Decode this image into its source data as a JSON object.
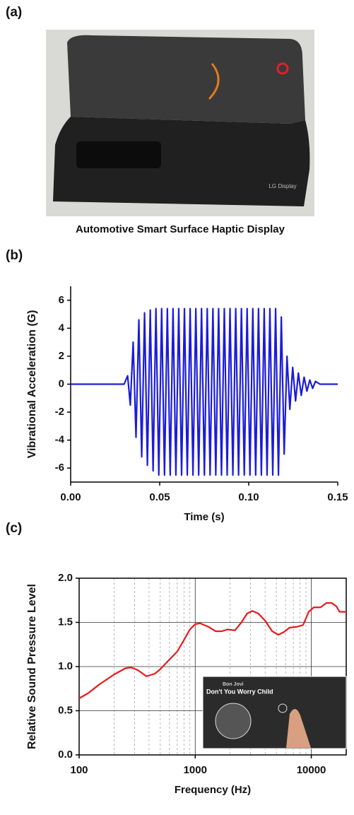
{
  "panel_labels": [
    "(a)",
    "(b)",
    "(c)"
  ],
  "photo_caption": "Automotive Smart Surface Haptic Display",
  "photo_logo": "LG Display",
  "inset": {
    "artist": "Bon Jovi",
    "song": "Don't You Worry Child"
  },
  "chart_data": [
    {
      "type": "line",
      "x_label": "Time (s)",
      "y_label": "Vibrational Acceleration (G)",
      "color": "#1c1cd8",
      "xlim": [
        0,
        0.15
      ],
      "xticks": [
        {
          "value": 0,
          "label": "0.00"
        },
        0.05,
        {
          "value": 0.1,
          "label": "0.10"
        },
        0.15
      ],
      "ylim": [
        -7,
        7
      ],
      "yticks": [
        -6,
        -4,
        -2,
        0,
        2,
        4,
        6
      ],
      "grid": false,
      "x": [
        0,
        0.03,
        0.032,
        0.0335,
        0.0351,
        0.0367,
        0.0383,
        0.0399,
        0.0415,
        0.0431,
        0.0447,
        0.0463,
        0.0479,
        0.0495,
        0.0511,
        0.0527,
        0.0543,
        0.0559,
        0.0575,
        0.0591,
        0.0607,
        0.0623,
        0.0639,
        0.0655,
        0.0671,
        0.0687,
        0.0703,
        0.0719,
        0.0735,
        0.0751,
        0.0767,
        0.0783,
        0.0799,
        0.0815,
        0.0831,
        0.0847,
        0.0863,
        0.0879,
        0.0895,
        0.0911,
        0.0927,
        0.0943,
        0.0959,
        0.0975,
        0.0991,
        0.1007,
        0.1023,
        0.1039,
        0.1055,
        0.1071,
        0.1087,
        0.1103,
        0.1119,
        0.1135,
        0.1151,
        0.1167,
        0.1183,
        0.1199,
        0.1215,
        0.1231,
        0.1247,
        0.1263,
        0.1279,
        0.1295,
        0.1311,
        0.1327,
        0.1343,
        0.1359,
        0.1375,
        0.14,
        0.15
      ],
      "values": [
        0,
        0,
        0.6,
        -1.5,
        3.0,
        -3.8,
        4.6,
        -5.2,
        5.1,
        -5.8,
        5.3,
        -6.2,
        5.4,
        -6.5,
        5.4,
        -6.5,
        5.4,
        -6.5,
        5.4,
        -6.5,
        5.4,
        -6.5,
        5.4,
        -6.5,
        5.4,
        -6.5,
        5.4,
        -6.5,
        5.4,
        -6.5,
        5.4,
        -6.5,
        5.4,
        -6.5,
        5.4,
        -6.5,
        5.4,
        -6.5,
        5.4,
        -6.5,
        5.4,
        -6.5,
        5.4,
        -6.5,
        5.4,
        -6.5,
        5.4,
        -6.5,
        5.4,
        -6.5,
        5.4,
        -6.5,
        5.4,
        -6.5,
        5.4,
        -6.5,
        4.8,
        -5.0,
        2.0,
        -1.8,
        1.2,
        -1.2,
        0.8,
        -0.8,
        0.5,
        -0.5,
        0.3,
        -0.3,
        0.2,
        0,
        0
      ]
    },
    {
      "type": "line",
      "x_label": "Frequency (Hz)",
      "y_label": "Relative Sound Pressure Level",
      "color": "#e8191c",
      "xscale": "log",
      "xlim": [
        100,
        20000
      ],
      "xticks": [
        100,
        1000,
        10000
      ],
      "x_minor_ticks": [
        200,
        300,
        400,
        500,
        600,
        700,
        800,
        900,
        2000,
        3000,
        4000,
        5000,
        6000,
        7000,
        8000,
        9000
      ],
      "ylim": [
        0,
        2
      ],
      "yticks": [
        {
          "value": 0,
          "label": "0.0"
        },
        0.5,
        {
          "value": 1,
          "label": "1.0"
        },
        1.5,
        {
          "value": 2,
          "label": "2.0"
        }
      ],
      "grid": true,
      "x": [
        100,
        120,
        150,
        200,
        250,
        280,
        320,
        380,
        450,
        500,
        600,
        700,
        800,
        900,
        1000,
        1100,
        1300,
        1500,
        1700,
        1900,
        2200,
        2500,
        2800,
        3100,
        3500,
        4000,
        4600,
        5200,
        5800,
        6500,
        7500,
        8500,
        9500,
        10500,
        12000,
        13500,
        15000,
        16500,
        17500,
        20000
      ],
      "values": [
        0.64,
        0.7,
        0.8,
        0.91,
        0.98,
        0.99,
        0.96,
        0.89,
        0.92,
        0.97,
        1.08,
        1.17,
        1.3,
        1.42,
        1.48,
        1.49,
        1.45,
        1.4,
        1.4,
        1.42,
        1.41,
        1.5,
        1.6,
        1.63,
        1.6,
        1.52,
        1.4,
        1.36,
        1.39,
        1.44,
        1.45,
        1.47,
        1.62,
        1.67,
        1.67,
        1.72,
        1.72,
        1.68,
        1.62,
        1.62
      ]
    }
  ]
}
